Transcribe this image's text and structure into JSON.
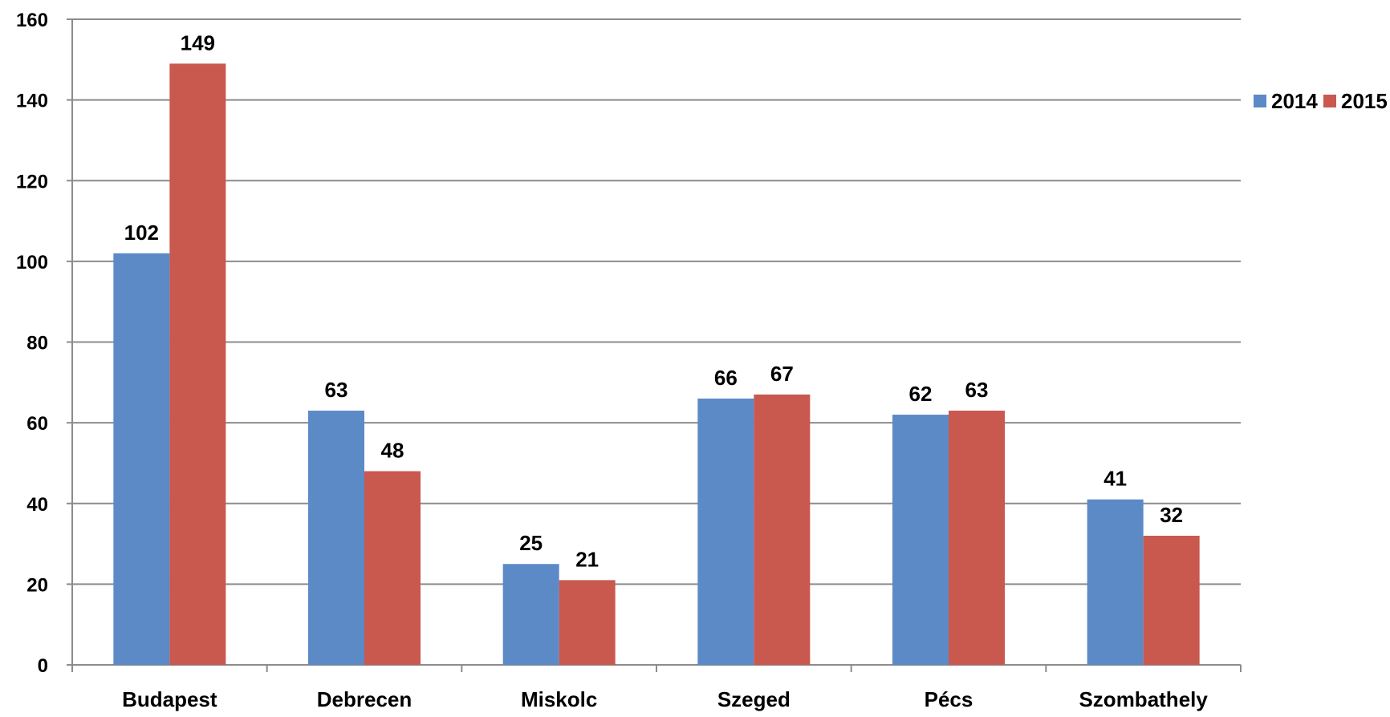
{
  "chart_data": {
    "type": "bar",
    "categories": [
      "Budapest",
      "Debrecen",
      "Miskolc",
      "Szeged",
      "Pécs",
      "Szombathely"
    ],
    "series": [
      {
        "name": "2014",
        "values": [
          102,
          63,
          25,
          66,
          62,
          41
        ],
        "color": "#5B8AC7"
      },
      {
        "name": "2015",
        "values": [
          149,
          48,
          21,
          67,
          63,
          32
        ],
        "color": "#C9584F"
      }
    ],
    "ylim": [
      0,
      160
    ],
    "yticks": [
      0,
      20,
      40,
      60,
      80,
      100,
      120,
      140,
      160
    ],
    "grid": true,
    "legend_position": "right",
    "data_labels": true
  }
}
